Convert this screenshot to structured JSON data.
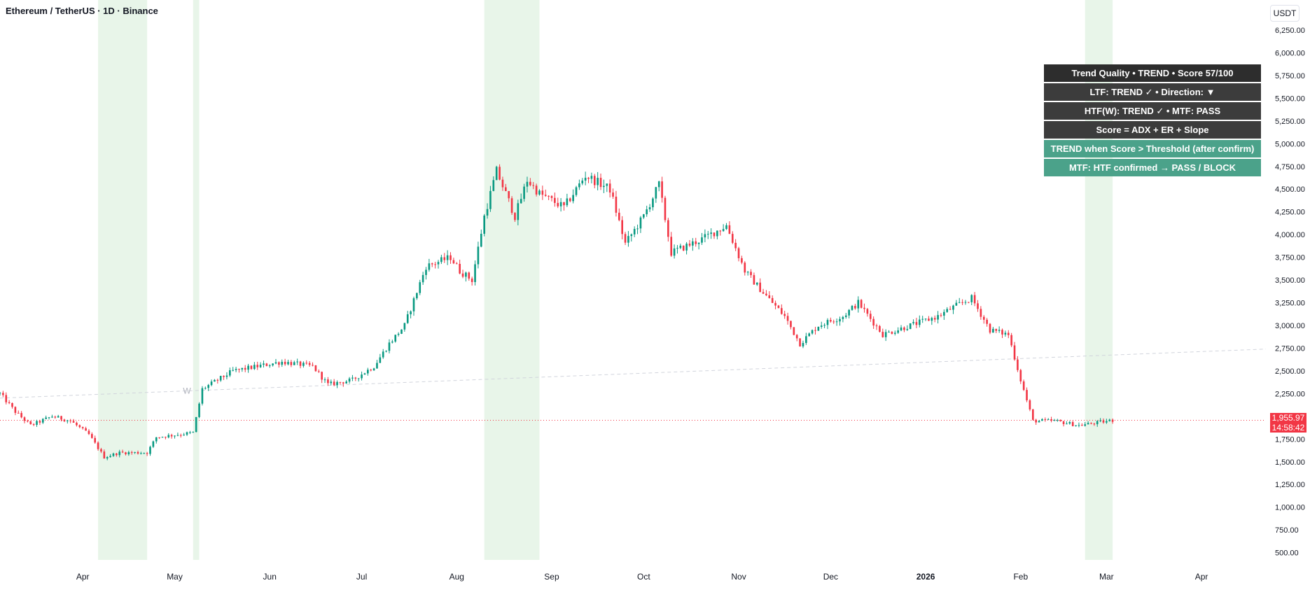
{
  "header": {
    "symbol_title": "Ethereum / TetherUS · 1D · Binance",
    "currency": "USDT"
  },
  "price_tag": {
    "price": "1,955.97",
    "countdown": "14:58:42",
    "color": "#f23645"
  },
  "info_panel": {
    "rows": [
      "Trend Quality • TREND • Score 57/100",
      "LTF: TREND ✓ • Direction: ▼",
      "HTF(W): TREND ✓ • MTF: PASS",
      "Score = ADX + ER + Slope",
      "TREND when Score > Threshold (after confirm)",
      "MTF: HTF confirmed → PASS / BLOCK"
    ]
  },
  "chart_data": {
    "type": "candlestick",
    "title": "Ethereum / TetherUS · 1D · Binance",
    "currency": "USDT",
    "y_ticks": [
      500,
      750,
      1000,
      1250,
      1500,
      1750,
      2000,
      2250,
      2500,
      2750,
      3000,
      3250,
      3500,
      3750,
      4000,
      4250,
      4500,
      4750,
      5000,
      5250,
      5500,
      5750,
      6000,
      6250
    ],
    "y_tick_labels": [
      "500.00",
      "750.00",
      "1,000.00",
      "1,250.00",
      "1,500.00",
      "1,750.00",
      "2,000.00",
      "2,250.00",
      "2,500.00",
      "2,750.00",
      "3,000.00",
      "3,250.00",
      "3,500.00",
      "3,750.00",
      "4,000.00",
      "4,250.00",
      "4,500.00",
      "4,750.00",
      "5,000.00",
      "5,250.00",
      "5,500.00",
      "5,750.00",
      "6,000.00",
      "6,250.00"
    ],
    "x_ticks": [
      {
        "label": "Apr",
        "date": "2025-04-01"
      },
      {
        "label": "May",
        "date": "2025-05-01"
      },
      {
        "label": "Jun",
        "date": "2025-06-01"
      },
      {
        "label": "Jul",
        "date": "2025-07-01"
      },
      {
        "label": "Aug",
        "date": "2025-08-01"
      },
      {
        "label": "Sep",
        "date": "2025-09-01"
      },
      {
        "label": "Oct",
        "date": "2025-10-01"
      },
      {
        "label": "Nov",
        "date": "2025-11-01"
      },
      {
        "label": "Dec",
        "date": "2025-12-01"
      },
      {
        "label": "2026",
        "date": "2026-01-01",
        "bold": true
      },
      {
        "label": "Feb",
        "date": "2026-02-01"
      },
      {
        "label": "Mar",
        "date": "2026-03-01"
      },
      {
        "label": "Apr",
        "date": "2026-04-01"
      }
    ],
    "y_range": [
      420,
      6350
    ],
    "x_range": [
      "2025-03-05",
      "2026-04-22"
    ],
    "last_price": 1955.97,
    "up_color": "#089981",
    "down_color": "#f23645",
    "shade_color": "#e8f5e9",
    "shaded_ranges": [
      [
        "2025-04-06",
        "2025-04-22"
      ],
      [
        "2025-05-07",
        "2025-05-09"
      ],
      [
        "2025-08-10",
        "2025-08-28"
      ],
      [
        "2026-02-22",
        "2026-03-03"
      ]
    ],
    "htf_line": {
      "label": "W",
      "start": [
        "2025-03-05",
        2200
      ],
      "end": [
        "2026-04-22",
        2740
      ]
    },
    "keyframes": [
      [
        "2025-03-05",
        2250
      ],
      [
        "2025-03-10",
        2050
      ],
      [
        "2025-03-15",
        1900
      ],
      [
        "2025-03-22",
        2000
      ],
      [
        "2025-03-28",
        1950
      ],
      [
        "2025-04-03",
        1800
      ],
      [
        "2025-04-08",
        1550
      ],
      [
        "2025-04-13",
        1600
      ],
      [
        "2025-04-22",
        1600
      ],
      [
        "2025-04-25",
        1770
      ],
      [
        "2025-05-07",
        1820
      ],
      [
        "2025-05-10",
        2300
      ],
      [
        "2025-05-20",
        2500
      ],
      [
        "2025-06-05",
        2600
      ],
      [
        "2025-06-15",
        2550
      ],
      [
        "2025-06-20",
        2350
      ],
      [
        "2025-06-28",
        2400
      ],
      [
        "2025-07-05",
        2550
      ],
      [
        "2025-07-10",
        2800
      ],
      [
        "2025-07-15",
        3000
      ],
      [
        "2025-07-22",
        3650
      ],
      [
        "2025-07-30",
        3750
      ],
      [
        "2025-08-02",
        3600
      ],
      [
        "2025-08-06",
        3500
      ],
      [
        "2025-08-10",
        4200
      ],
      [
        "2025-08-14",
        4700
      ],
      [
        "2025-08-20",
        4200
      ],
      [
        "2025-08-24",
        4600
      ],
      [
        "2025-08-28",
        4450
      ],
      [
        "2025-09-05",
        4300
      ],
      [
        "2025-09-12",
        4650
      ],
      [
        "2025-09-20",
        4500
      ],
      [
        "2025-09-25",
        3900
      ],
      [
        "2025-10-01",
        4200
      ],
      [
        "2025-10-06",
        4550
      ],
      [
        "2025-10-10",
        3800
      ],
      [
        "2025-10-20",
        3950
      ],
      [
        "2025-10-28",
        4100
      ],
      [
        "2025-11-03",
        3600
      ],
      [
        "2025-11-08",
        3400
      ],
      [
        "2025-11-16",
        3100
      ],
      [
        "2025-11-21",
        2800
      ],
      [
        "2025-11-27",
        3000
      ],
      [
        "2025-12-05",
        3100
      ],
      [
        "2025-12-10",
        3250
      ],
      [
        "2025-12-18",
        2900
      ],
      [
        "2026-01-05",
        3100
      ],
      [
        "2026-01-10",
        3200
      ],
      [
        "2026-01-16",
        3300
      ],
      [
        "2026-01-22",
        2950
      ],
      [
        "2026-01-28",
        2900
      ],
      [
        "2026-02-01",
        2400
      ],
      [
        "2026-02-05",
        1950
      ],
      [
        "2026-02-12",
        1950
      ],
      [
        "2026-02-20",
        1900
      ],
      [
        "2026-02-26",
        1930
      ],
      [
        "2026-03-03",
        1956
      ]
    ]
  }
}
